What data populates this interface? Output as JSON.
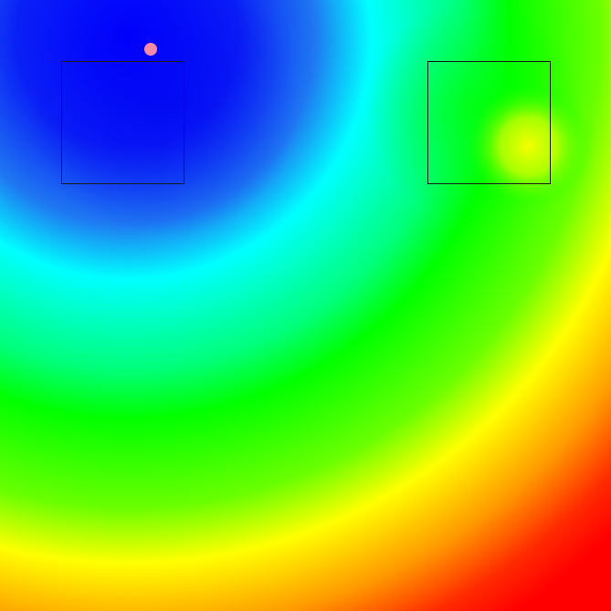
{
  "scene": {
    "colormap": "jet",
    "colors": {
      "low": "#0000ff",
      "mid_low": "#00ffff",
      "mid": "#00ff00",
      "mid_high": "#ffff00",
      "high": "#ff0000",
      "frame": "#1a1a1a",
      "marker": "#f48aa6"
    },
    "regions": [
      {
        "name": "left-target-region"
      },
      {
        "name": "right-target-region"
      }
    ],
    "marker": {
      "name": "agent-position"
    }
  }
}
